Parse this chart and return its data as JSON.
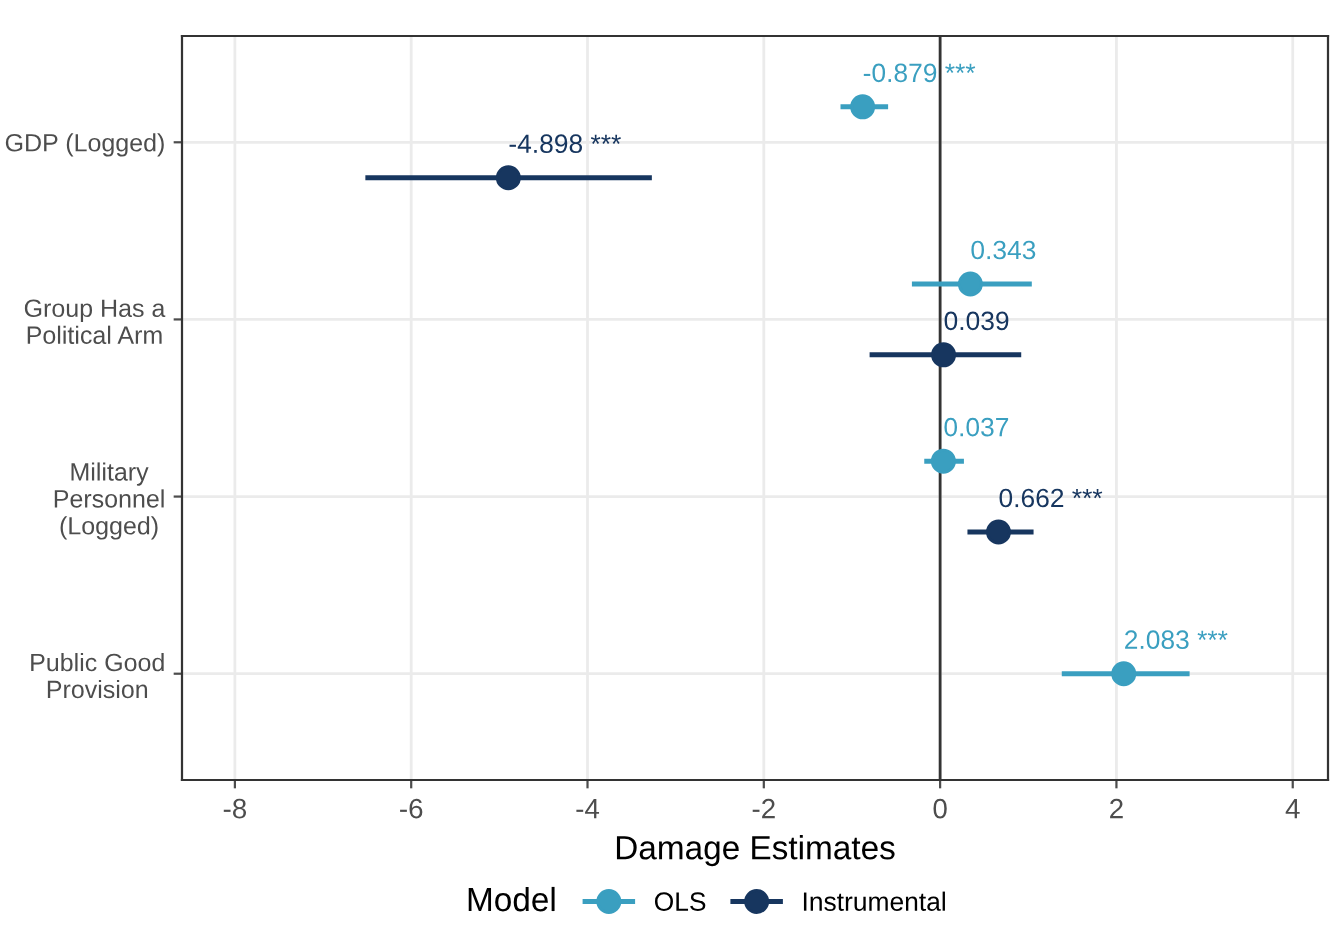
{
  "chart_data": {
    "type": "scatter",
    "orientation": "horizontal",
    "xlabel": "Damage Estimates",
    "legend_title": "Model",
    "categories": [
      "GDP (Logged)",
      "Group Has a\nPolitical Arm",
      "Military\nPersonnel\n(Logged)",
      "Public Good\nProvision"
    ],
    "series": [
      {
        "name": "OLS",
        "color": "#3a9fc0",
        "values": [
          -0.879,
          0.343,
          0.037,
          2.083
        ],
        "errors": [
          [
            -1.13,
            -0.59
          ],
          [
            -0.32,
            1.04
          ],
          [
            -0.18,
            0.27
          ],
          [
            1.38,
            2.83
          ]
        ],
        "value_labels": [
          "-0.879 ***",
          "0.343",
          "0.037",
          "2.083 ***"
        ]
      },
      {
        "name": "Instrumental",
        "color": "#17365f",
        "values": [
          -4.898,
          0.039,
          0.662,
          null
        ],
        "errors": [
          [
            -6.52,
            -3.27
          ],
          [
            -0.8,
            0.92
          ],
          [
            0.31,
            1.06
          ],
          null
        ],
        "value_labels": [
          "-4.898 ***",
          "0.039",
          "0.662 ***",
          null
        ]
      }
    ],
    "xlim": [
      -8.6,
      4.4
    ],
    "xticks": [
      -8,
      -6,
      -4,
      -2,
      0,
      2,
      4
    ],
    "ref_lines": [
      {
        "axis": "x",
        "value": 0,
        "color": "#333333"
      }
    ],
    "grid": true,
    "legend": "bottom",
    "marker": "circle"
  }
}
